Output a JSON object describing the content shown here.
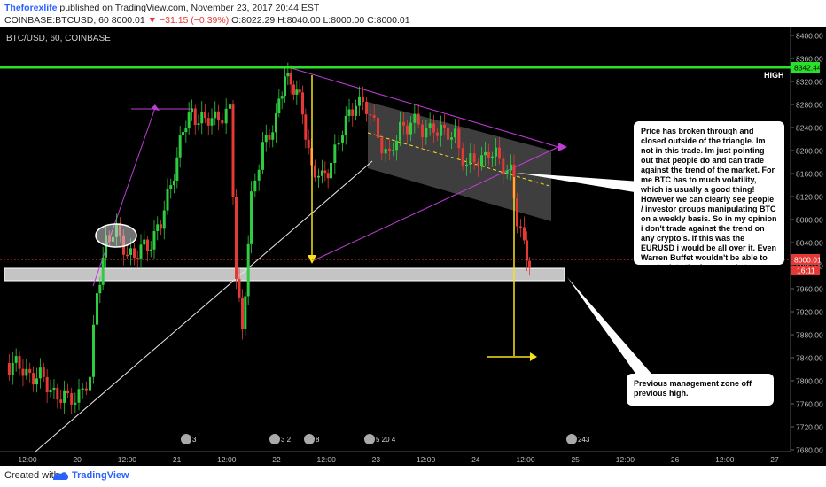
{
  "header": {
    "author": "Theforexlife",
    "published_text": " published on TradingView.com, November 23, 2017 20:44 EST",
    "symbol_line": "COINBASE:BTCUSD, 60  8000.01",
    "change": "▼ −31.15 (−0.39%)",
    "ohlc": " O:8022.29  H:8040.00  L:8000.00  C:8000.01"
  },
  "chart": {
    "title": "BTC/USD, 60, COINBASE",
    "price_axis": [
      "8400.00",
      "8360.00",
      "8320.00",
      "8280.00",
      "8240.00",
      "8200.00",
      "8160.00",
      "8120.00",
      "8080.00",
      "8040.00",
      "8000.00",
      "7960.00",
      "7920.00",
      "7880.00",
      "7840.00",
      "7800.00",
      "7760.00",
      "7720.00",
      "7680.00"
    ],
    "time_axis": [
      "12:00",
      "20",
      "12:00",
      "21",
      "12:00",
      "22",
      "12:00",
      "23",
      "12:00",
      "24",
      "12:00",
      "25",
      "12:00",
      "26",
      "12:00",
      "27"
    ],
    "high_label": "HIGH",
    "high_price": "8342.44",
    "current_price": "8000.01",
    "countdown": "16:11",
    "event_badges": [
      "3",
      "3 2",
      "8",
      "5 20 4",
      "243"
    ],
    "colors": {
      "up": "#2ecc40",
      "down": "#e53935",
      "high_line": "#27e327",
      "triangle": "#c03cd8",
      "arrow_yellow": "#f5e11c",
      "background": "#000000"
    }
  },
  "notes": {
    "triangle_note": "Price has broken through and closed outside of the triangle. Im not in this trade. Im just pointing out that people do and can trade against the trend of the market.  For me BTC  has to much volatility, which is usually a good thing! However we can clearly see people / investor groups manipulating BTC on a weekly basis. So in my opinion i don't trade against the trend on any crypto's. If this was the EURUSD i would be all over it. Even Warren Buffet wouldn't be able to manipulate the forex market.",
    "zone_note": "Previous management zone off previous high."
  },
  "footer": {
    "created_with": "Created with",
    "brand": "TradingView"
  }
}
